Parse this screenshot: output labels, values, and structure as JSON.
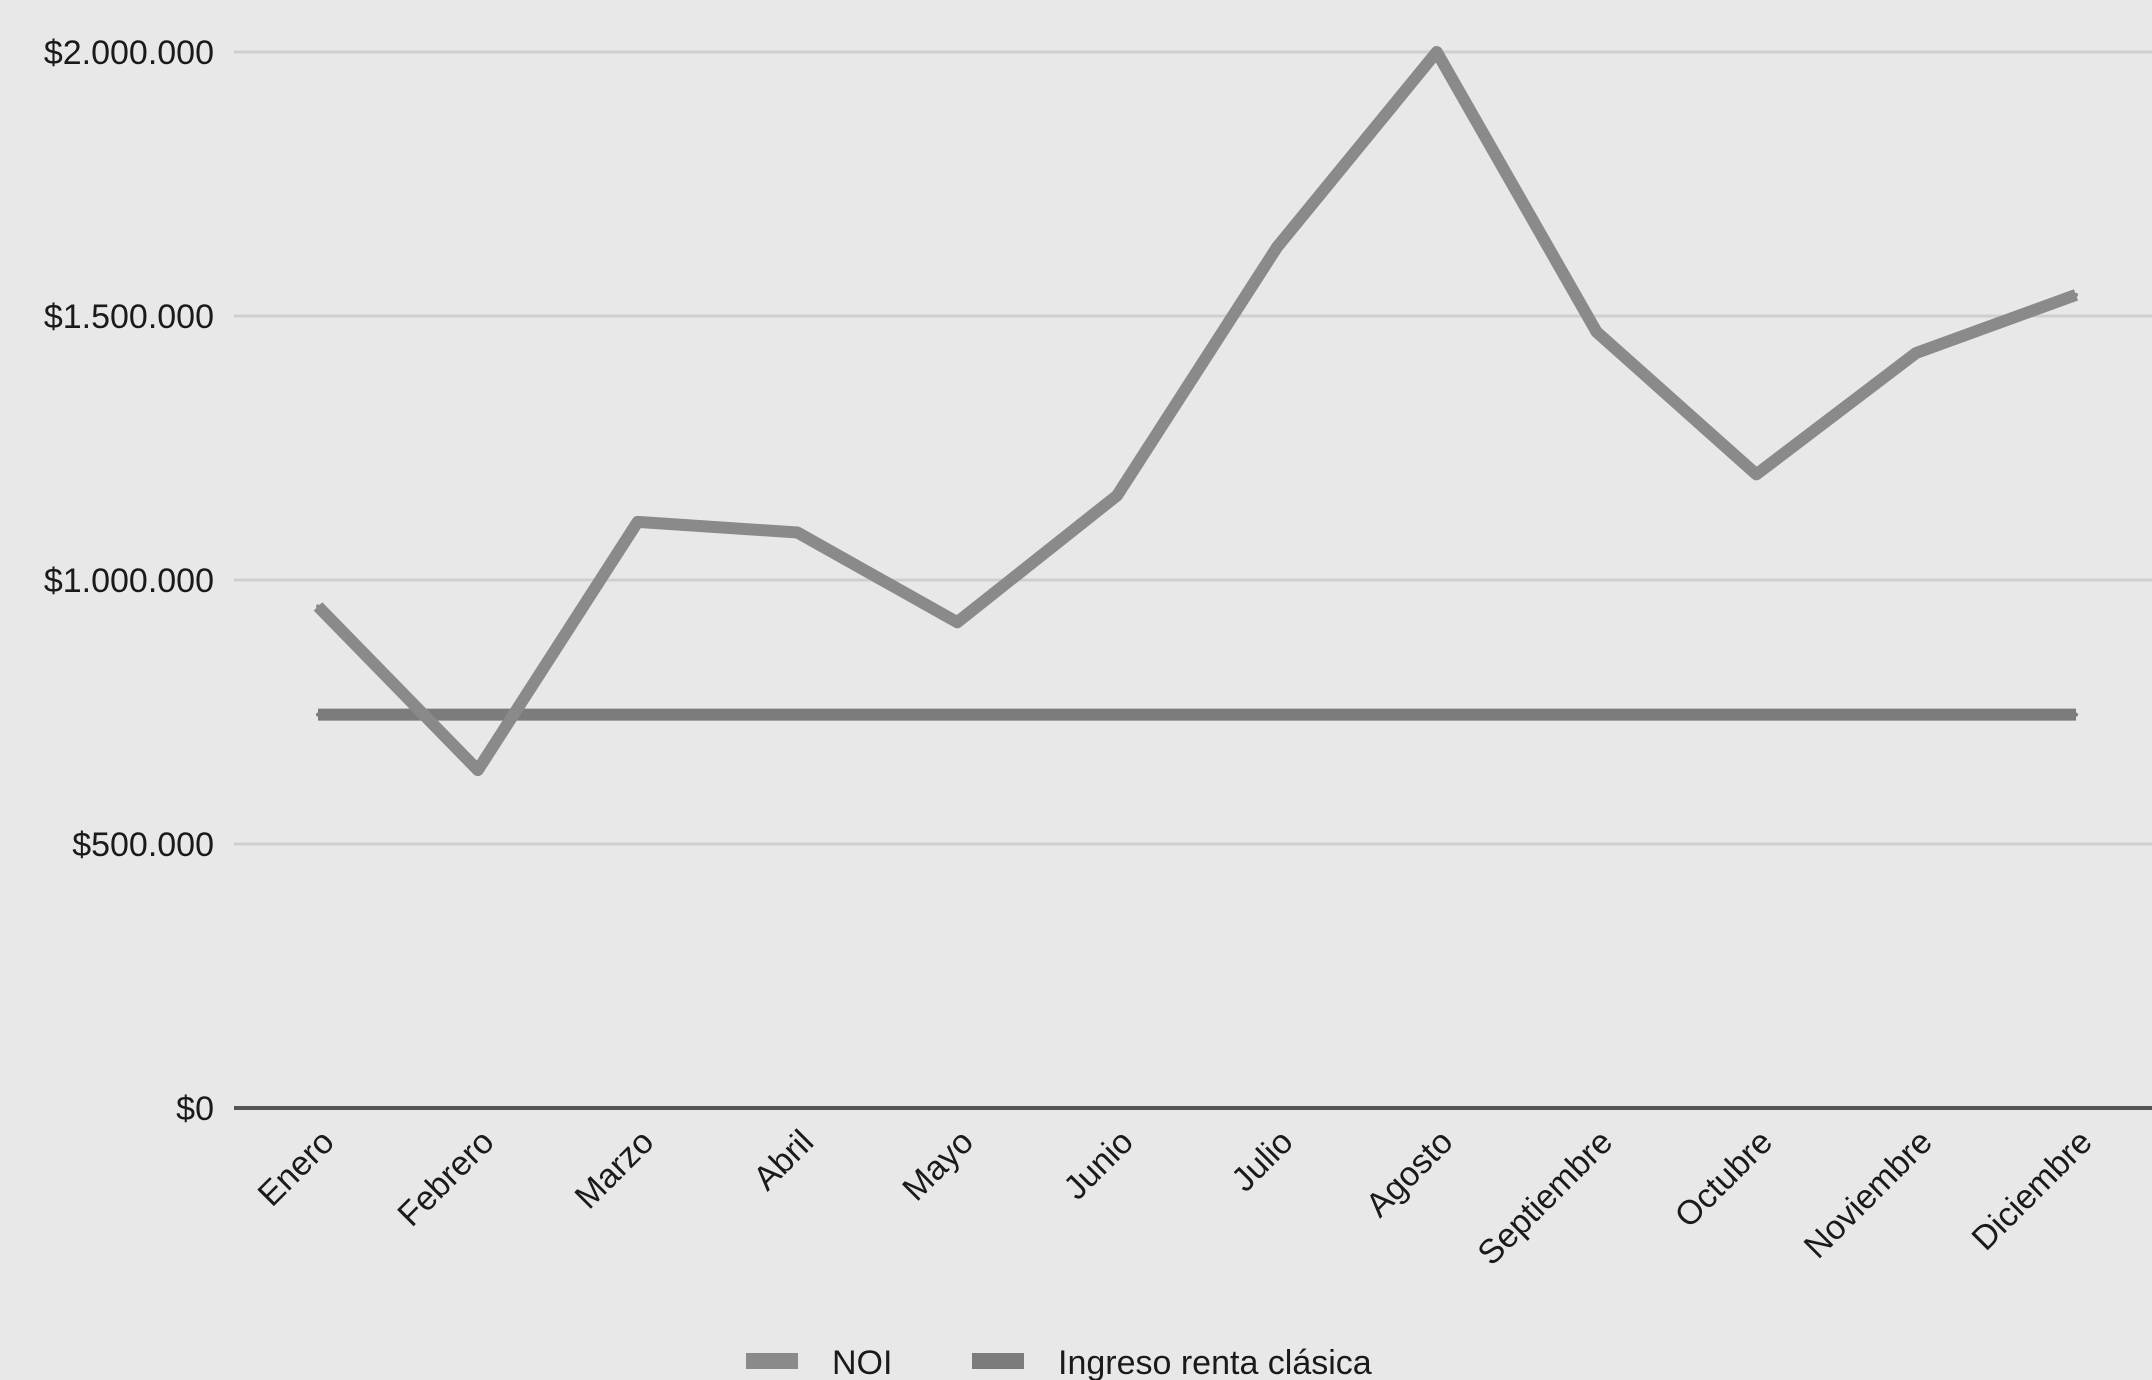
{
  "chart_data": {
    "type": "line",
    "title": "",
    "xlabel": "",
    "ylabel": "",
    "categories": [
      "Enero",
      "Febrero",
      "Marzo",
      "Abril",
      "Mayo",
      "Junio",
      "Julio",
      "Agosto",
      "Septiembre",
      "Octubre",
      "Noviembre",
      "Diciembre"
    ],
    "y_ticks": [
      0,
      500000,
      1000000,
      1500000,
      2000000
    ],
    "y_tick_labels": [
      "$0",
      "$500.000",
      "$1.000.000",
      "$1.500.000",
      "$2.000.000"
    ],
    "ylim": [
      0,
      2000000
    ],
    "grid": true,
    "legend_position": "bottom",
    "series": [
      {
        "name": "NOI",
        "color": "#8a8a8a",
        "values": [
          950000,
          640000,
          1110000,
          1090000,
          920000,
          1160000,
          1630000,
          2000000,
          1470000,
          1200000,
          1430000,
          1540000
        ]
      },
      {
        "name": "Ingreso renta clásica",
        "color": "#7c7c7c",
        "values": [
          745000,
          745000,
          745000,
          745000,
          745000,
          745000,
          745000,
          745000,
          745000,
          745000,
          745000,
          745000
        ]
      }
    ],
    "colors": {
      "background": "#e8e8e8",
      "gridline": "#cfcfcf",
      "baseline": "#555555",
      "text": "#1a1a1a"
    }
  }
}
